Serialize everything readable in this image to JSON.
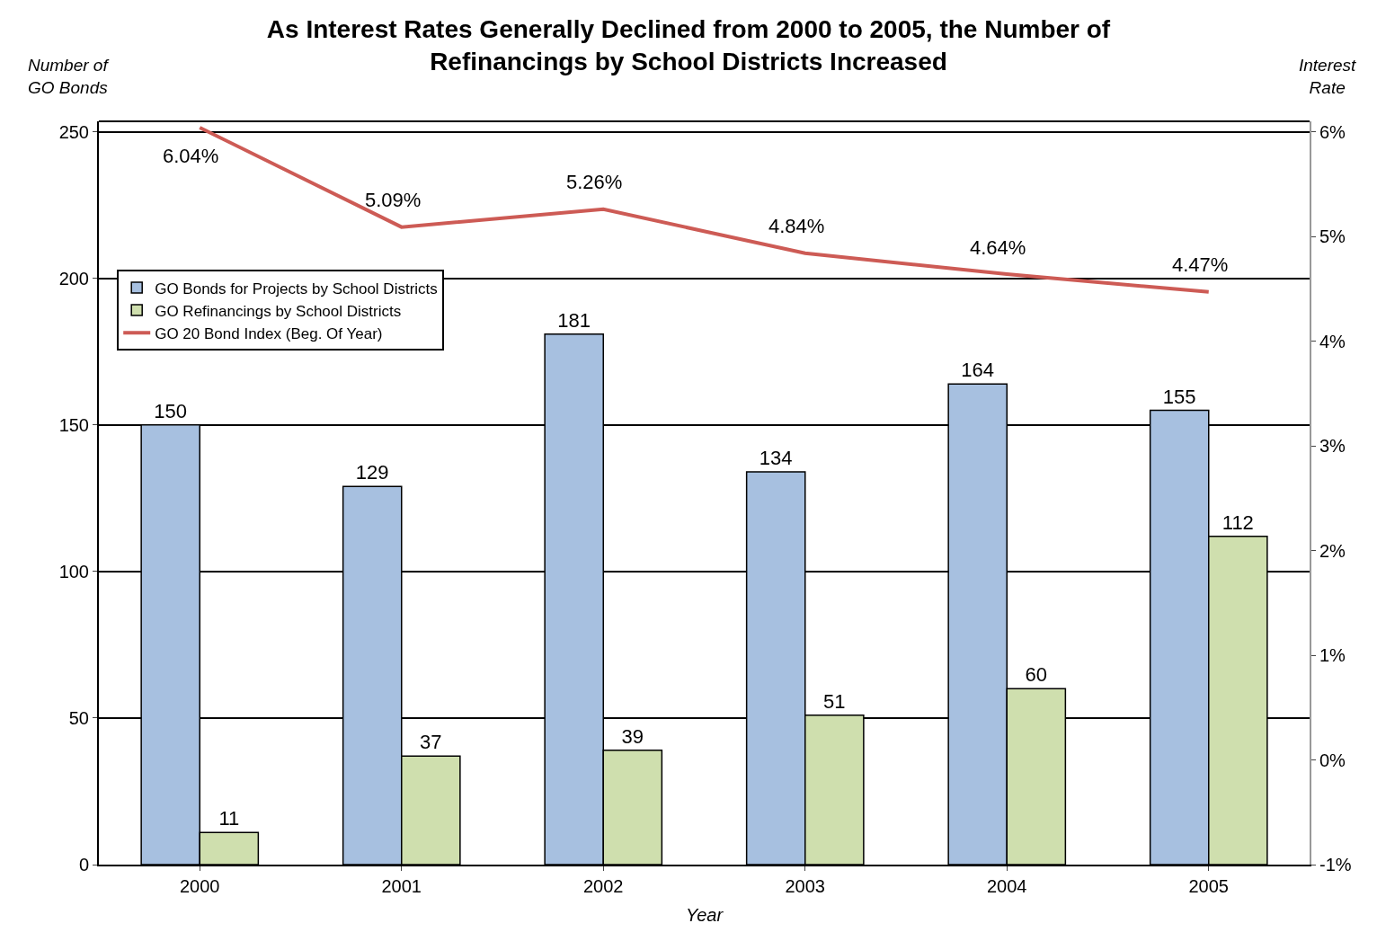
{
  "chart_data": {
    "type": "bar",
    "title": "As Interest Rates Generally Declined from 2000 to 2005, the Number of\nRefinancings by School Districts Increased",
    "xlabel": "Year",
    "ylabel": "Number of\nGO Bonds",
    "y2label": "Interest\nRate",
    "categories": [
      "2000",
      "2001",
      "2002",
      "2003",
      "2004",
      "2005"
    ],
    "series": [
      {
        "name": "GO Bonds for Projects by School Districts",
        "color": "#a7c0e0",
        "values": [
          150,
          129,
          181,
          134,
          164,
          155
        ]
      },
      {
        "name": "GO Refinancings by School Districts",
        "color": "#cfdfae",
        "values": [
          11,
          37,
          39,
          51,
          60,
          112
        ]
      },
      {
        "name": "GO 20 Bond Index (Beg. Of Year)",
        "type": "line",
        "axis": "y2",
        "color": "#cd5b55",
        "values": [
          6.04,
          5.09,
          5.26,
          4.84,
          4.64,
          4.47
        ],
        "value_labels": [
          "6.04%",
          "5.09%",
          "5.26%",
          "4.84%",
          "4.64%",
          "4.47%"
        ],
        "marker": "none",
        "line_style": "solid"
      }
    ],
    "data_labels": true,
    "ylim": [
      0,
      253.6
    ],
    "yticks": [
      0,
      50,
      100,
      150,
      200,
      250
    ],
    "y2lim": [
      -1,
      6.1
    ],
    "y2ticks": [
      {
        "value": -1,
        "label": "-1%"
      },
      {
        "value": 0,
        "label": "0%"
      },
      {
        "value": 1,
        "label": "1%"
      },
      {
        "value": 2,
        "label": "2%"
      },
      {
        "value": 3,
        "label": "3%"
      },
      {
        "value": 4,
        "label": "4%"
      },
      {
        "value": 5,
        "label": "5%"
      },
      {
        "value": 6,
        "label": "6%"
      }
    ],
    "grid": "y",
    "legend": "top left"
  }
}
